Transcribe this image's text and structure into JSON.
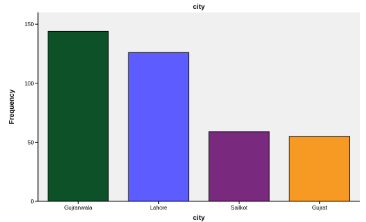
{
  "chart_data": {
    "type": "bar",
    "title": "city",
    "xlabel": "city",
    "ylabel": "Frequency",
    "categories": [
      "Gujranwala",
      "Lahore",
      "Sailkot",
      "Gujrat"
    ],
    "values": [
      144,
      126,
      59,
      55
    ],
    "colors": [
      "#0c5128",
      "#5c5cff",
      "#7a2a7e",
      "#f79a23"
    ],
    "ylim": [
      0,
      160
    ],
    "yticks": [
      0,
      50,
      100,
      150
    ],
    "grid": false,
    "legend": "none",
    "plot_background": "#f0f0f0"
  }
}
